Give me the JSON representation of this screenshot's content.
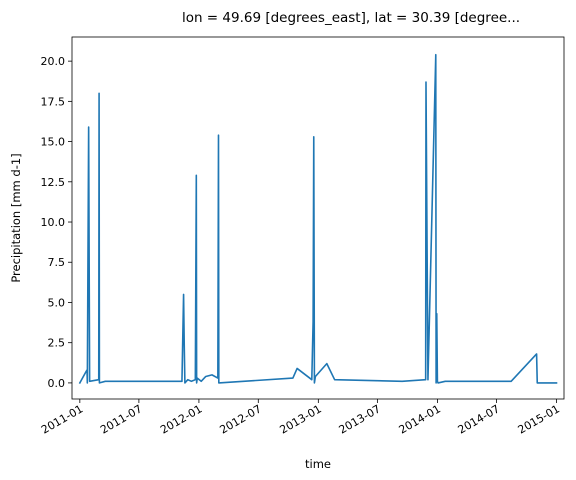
{
  "chart_data": {
    "type": "line",
    "title": "lon = 49.69 [degrees_east], lat = 30.39 [degree...",
    "xlabel": "time",
    "ylabel": "Precipitation [mm d-1]",
    "xlim": [
      "2010-12-08",
      "2015-01-24"
    ],
    "ylim": [
      -1.0,
      21.5
    ],
    "grid": false,
    "legend": "none",
    "line_color": "#1f77b4",
    "x_ticks": [
      {
        "value": "2011-01-01",
        "label": "2011-01"
      },
      {
        "value": "2011-07-01",
        "label": "2011-07"
      },
      {
        "value": "2012-01-01",
        "label": "2012-01"
      },
      {
        "value": "2012-07-01",
        "label": "2012-07"
      },
      {
        "value": "2013-01-01",
        "label": "2013-01"
      },
      {
        "value": "2013-07-01",
        "label": "2013-07"
      },
      {
        "value": "2014-01-01",
        "label": "2014-01"
      },
      {
        "value": "2014-07-01",
        "label": "2014-07"
      },
      {
        "value": "2015-01-01",
        "label": "2015-01"
      }
    ],
    "y_ticks": [
      {
        "value": 0.0,
        "label": "0.0"
      },
      {
        "value": 2.5,
        "label": "2.5"
      },
      {
        "value": 5.0,
        "label": "5.0"
      },
      {
        "value": 7.5,
        "label": "7.5"
      },
      {
        "value": 10.0,
        "label": "10.0"
      },
      {
        "value": 12.5,
        "label": "12.5"
      },
      {
        "value": 15.0,
        "label": "15.0"
      },
      {
        "value": 17.5,
        "label": "17.5"
      },
      {
        "value": 20.0,
        "label": "20.0"
      }
    ],
    "series": [
      {
        "x": [
          "2011-01-01",
          "2011-01-20",
          "2011-01-23",
          "2011-01-24",
          "2011-01-28",
          "2011-01-31",
          "2011-02-28",
          "2011-03-01",
          "2011-03-02",
          "2011-03-20",
          "2011-09-25",
          "2011-10-20",
          "2011-11-10",
          "2011-11-15",
          "2011-11-17",
          "2011-11-19",
          "2011-11-28",
          "2011-12-09",
          "2011-12-21",
          "2011-12-24",
          "2011-12-25",
          "2011-12-27",
          "2012-01-08",
          "2012-01-22",
          "2012-02-10",
          "2012-02-28",
          "2012-03-01",
          "2012-03-02",
          "2012-10-15",
          "2012-10-28",
          "2012-12-12",
          "2012-12-16",
          "2012-12-18",
          "2012-12-20",
          "2012-12-23",
          "2013-01-27",
          "2013-02-20",
          "2013-09-15",
          "2013-11-26",
          "2013-11-27",
          "2013-12-03",
          "2013-12-27",
          "2013-12-28",
          "2013-12-30",
          "2014-01-01",
          "2014-01-03",
          "2014-01-25",
          "2014-02-03",
          "2014-02-07",
          "2014-08-15",
          "2014-11-01",
          "2014-11-03",
          "2015-01-01"
        ],
        "y": [
          0.0,
          0.7,
          0.8,
          0.0,
          15.9,
          0.1,
          0.2,
          18.0,
          0.0,
          0.1,
          0.1,
          0.1,
          0.1,
          5.5,
          2.4,
          0.0,
          0.2,
          0.1,
          0.2,
          12.9,
          0.0,
          0.3,
          0.1,
          0.4,
          0.5,
          0.3,
          15.4,
          0.0,
          0.3,
          0.9,
          0.2,
          3.8,
          15.3,
          0.0,
          0.4,
          1.2,
          0.2,
          0.1,
          0.2,
          18.7,
          0.2,
          20.4,
          0.0,
          4.3,
          0.1,
          0.0,
          0.1,
          0.1,
          0.1,
          0.1,
          1.8,
          0.0,
          0.0
        ]
      }
    ]
  }
}
